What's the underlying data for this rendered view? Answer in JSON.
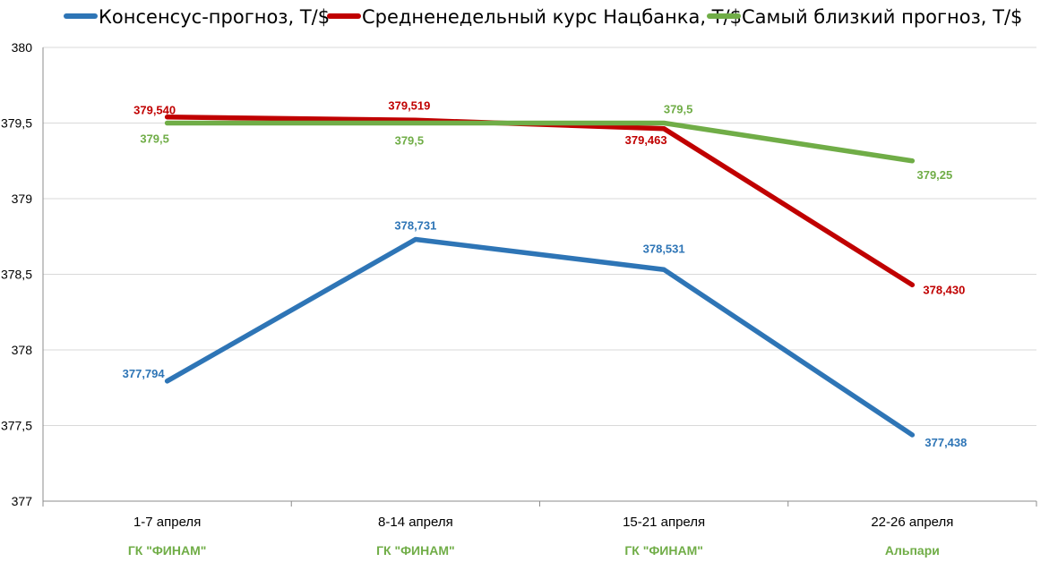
{
  "chart_data": {
    "type": "line",
    "categories": [
      "1-7 апреля",
      "8-14 апреля",
      "15-21 апреля",
      "22-26 апреля"
    ],
    "category_notes": [
      "ГК \"ФИНАМ\"",
      "ГК \"ФИНАМ\"",
      "ГК \"ФИНАМ\"",
      "Альпари"
    ],
    "category_notes_color": "#70ad47",
    "ylim": [
      377,
      380
    ],
    "yticks": [
      377,
      377.5,
      378,
      378.5,
      379,
      379.5,
      380
    ],
    "ytick_labels": [
      "377",
      "377,5",
      "378",
      "378,5",
      "379",
      "379,5",
      "380"
    ],
    "grid": true,
    "legend_position": "top",
    "series": [
      {
        "name": "Консенсус-прогноз, Т/$",
        "color": "#2e75b6",
        "values": [
          377.794,
          378.731,
          378.531,
          377.438
        ],
        "labels": [
          "377,794",
          "378,731",
          "378,531",
          "377,438"
        ]
      },
      {
        "name": "Средненедельный курс Нацбанка, Т/$",
        "color": "#c00000",
        "values": [
          379.54,
          379.519,
          379.463,
          378.43
        ],
        "labels": [
          "379,540",
          "379,519",
          "379,463",
          "378,430"
        ]
      },
      {
        "name": "Самый близкий прогноз, Т/$",
        "color": "#70ad47",
        "values": [
          379.5,
          379.5,
          379.5,
          379.25
        ],
        "labels": [
          "379,5",
          "379,5",
          "379,5",
          "379,25"
        ]
      }
    ]
  }
}
